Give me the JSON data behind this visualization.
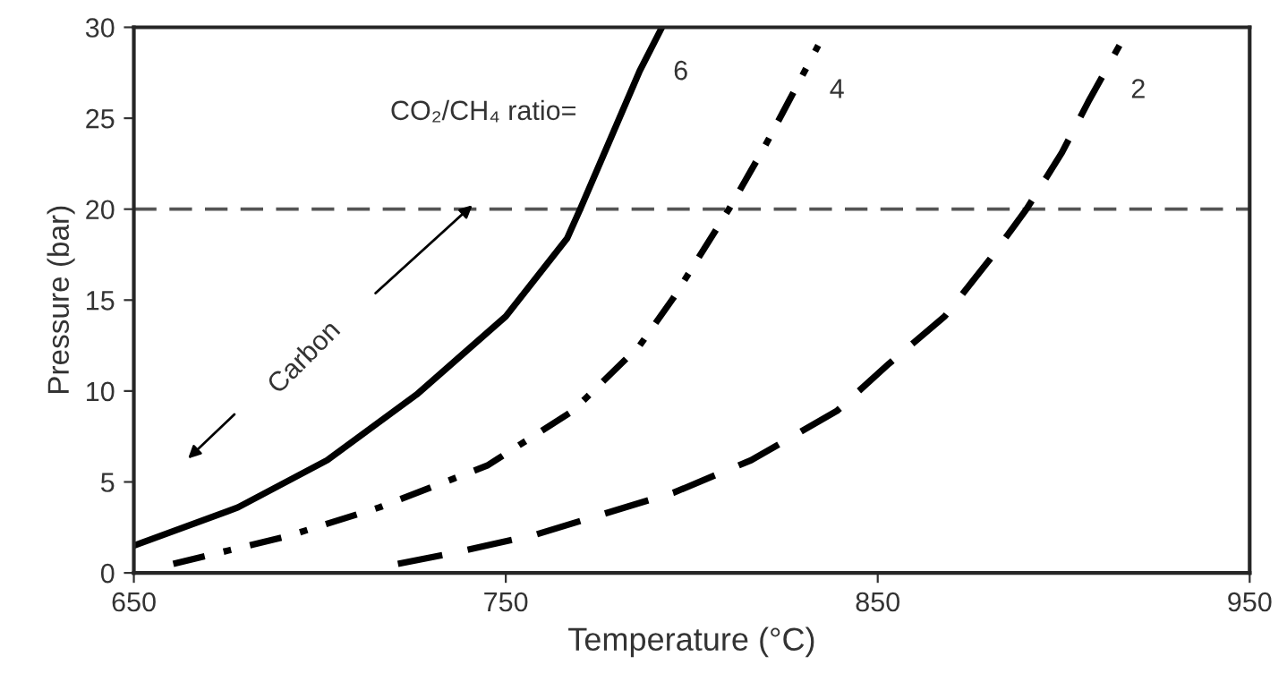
{
  "chart_data": {
    "type": "line",
    "xlabel": "Temperature (°C)",
    "ylabel": "Pressure (bar)",
    "xlim": [
      650,
      950
    ],
    "ylim": [
      0,
      30
    ],
    "xticks": [
      650,
      750,
      850,
      950
    ],
    "yticks": [
      0,
      5,
      10,
      15,
      20,
      25,
      30
    ],
    "grid": false,
    "legend": false,
    "marker": "none",
    "series": [
      {
        "name": "6",
        "color": "#000000",
        "line_style": "solid",
        "x": [
          650,
          678,
          702,
          726,
          750,
          766.5,
          770,
          778,
          786,
          792
        ],
        "values": [
          1.5,
          3.6,
          6.2,
          9.8,
          14.1,
          18.4,
          20,
          23.8,
          27.6,
          30
        ]
      },
      {
        "name": "4",
        "color": "#000000",
        "line_style": "dashdot",
        "x": [
          660.6,
          691,
          716,
          745,
          768,
          786,
          795,
          810,
          819.5,
          826,
          834
        ],
        "values": [
          0.5,
          2,
          3.6,
          5.9,
          8.9,
          12.5,
          15.1,
          20,
          23.4,
          25.9,
          29
        ]
      },
      {
        "name": "2",
        "color": "#000000",
        "line_style": "dashed",
        "x": [
          721,
          736,
          758,
          782,
          795,
          816,
          839,
          853,
          868,
          880,
          890,
          899.5,
          906.6,
          915
        ],
        "values": [
          0.5,
          1.1,
          2.1,
          3.6,
          4.4,
          6.2,
          8.9,
          11.5,
          14.1,
          17.2,
          20,
          23.1,
          25.9,
          29
        ]
      }
    ],
    "ref_lines": [
      {
        "axis": "y",
        "value": 20,
        "color": "#555555",
        "line_style": "dashed"
      }
    ],
    "annotations": [
      "CO₂/CH₄ ratio=",
      "Carbon"
    ]
  }
}
